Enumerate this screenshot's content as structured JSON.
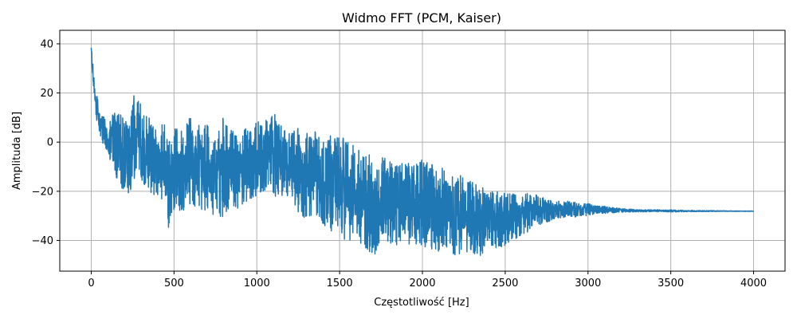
{
  "chart_data": {
    "type": "line",
    "title": "Widmo FFT (PCM, Kaiser)",
    "xlabel": "Częstotliwość [Hz]",
    "ylabel": "Amplituda [dB]",
    "xlim": [
      -190,
      4190
    ],
    "ylim": [
      -52.5,
      45.5
    ],
    "xticks": [
      0,
      500,
      1000,
      1500,
      2000,
      2500,
      3000,
      3500,
      4000
    ],
    "yticks": [
      -40,
      -20,
      0,
      20,
      40
    ],
    "xtick_labels": [
      "0",
      "500",
      "1000",
      "1500",
      "2000",
      "2500",
      "3000",
      "3500",
      "4000"
    ],
    "ytick_labels": [
      "−40",
      "−20",
      "0",
      "20",
      "40"
    ],
    "grid": true,
    "line_color": "#1f77b4",
    "series": [
      {
        "x": [
          0,
          10,
          20,
          30,
          40,
          60,
          80,
          100,
          150,
          200,
          250,
          270,
          300,
          350,
          400,
          450,
          480,
          500,
          550,
          600,
          650,
          700,
          750,
          800,
          850,
          900,
          950,
          1000,
          1050,
          1080,
          1100,
          1150,
          1200,
          1250,
          1300,
          1350,
          1400,
          1450,
          1500,
          1550,
          1600,
          1650,
          1700,
          1750,
          1800,
          1850,
          1900,
          1950,
          2000,
          2050,
          2100,
          2150,
          2200,
          2250,
          2300,
          2350,
          2400,
          2450,
          2500,
          2550,
          2600,
          2650,
          2700,
          2750,
          2800,
          2850,
          2900,
          2950,
          3000,
          3050,
          3100,
          3200,
          3300,
          3400,
          3500,
          3600,
          3700,
          3800,
          3900,
          4000
        ],
        "upper": [
          41,
          32,
          24,
          21,
          18,
          12,
          10,
          9,
          14,
          9,
          18,
          21,
          16,
          10,
          8,
          7,
          0,
          8,
          5,
          11,
          7,
          7,
          1,
          11,
          5,
          5,
          7,
          9,
          10,
          8,
          13,
          7,
          4,
          6,
          4,
          5,
          0,
          3,
          3,
          0,
          -2,
          -4,
          -5,
          -6,
          -7,
          -9,
          -8,
          -9,
          -7,
          -8,
          -8,
          -11,
          -13,
          -14,
          -16,
          -18,
          -20,
          -19,
          -21,
          -21,
          -22,
          -20,
          -22,
          -23,
          -24,
          -24,
          -24,
          -25,
          -25,
          -26,
          -26,
          -27,
          -27.5,
          -27.5,
          -27.5,
          -27.8,
          -27.8,
          -27.9,
          -28,
          -28
        ],
        "lower": [
          35,
          26,
          16,
          10,
          6,
          1,
          -3,
          -5,
          -15,
          -22,
          -20,
          -13,
          -16,
          -21,
          -22,
          -28,
          -41,
          -27,
          -29,
          -26,
          -27,
          -29,
          -30,
          -31,
          -28,
          -28,
          -24,
          -22,
          -20,
          -18,
          -22,
          -23,
          -24,
          -29,
          -32,
          -30,
          -34,
          -37,
          -39,
          -40,
          -41,
          -43,
          -48,
          -39,
          -41,
          -43,
          -40,
          -45,
          -42,
          -44,
          -45,
          -44,
          -46,
          -46,
          -45,
          -47,
          -41,
          -44,
          -42,
          -40,
          -38,
          -36,
          -34,
          -33,
          -31,
          -31,
          -31,
          -30,
          -30,
          -29,
          -29,
          -28.6,
          -28.4,
          -28.3,
          -28.4,
          -28.3,
          -28.3,
          -28.2,
          -28.2,
          -28.2
        ]
      }
    ]
  }
}
